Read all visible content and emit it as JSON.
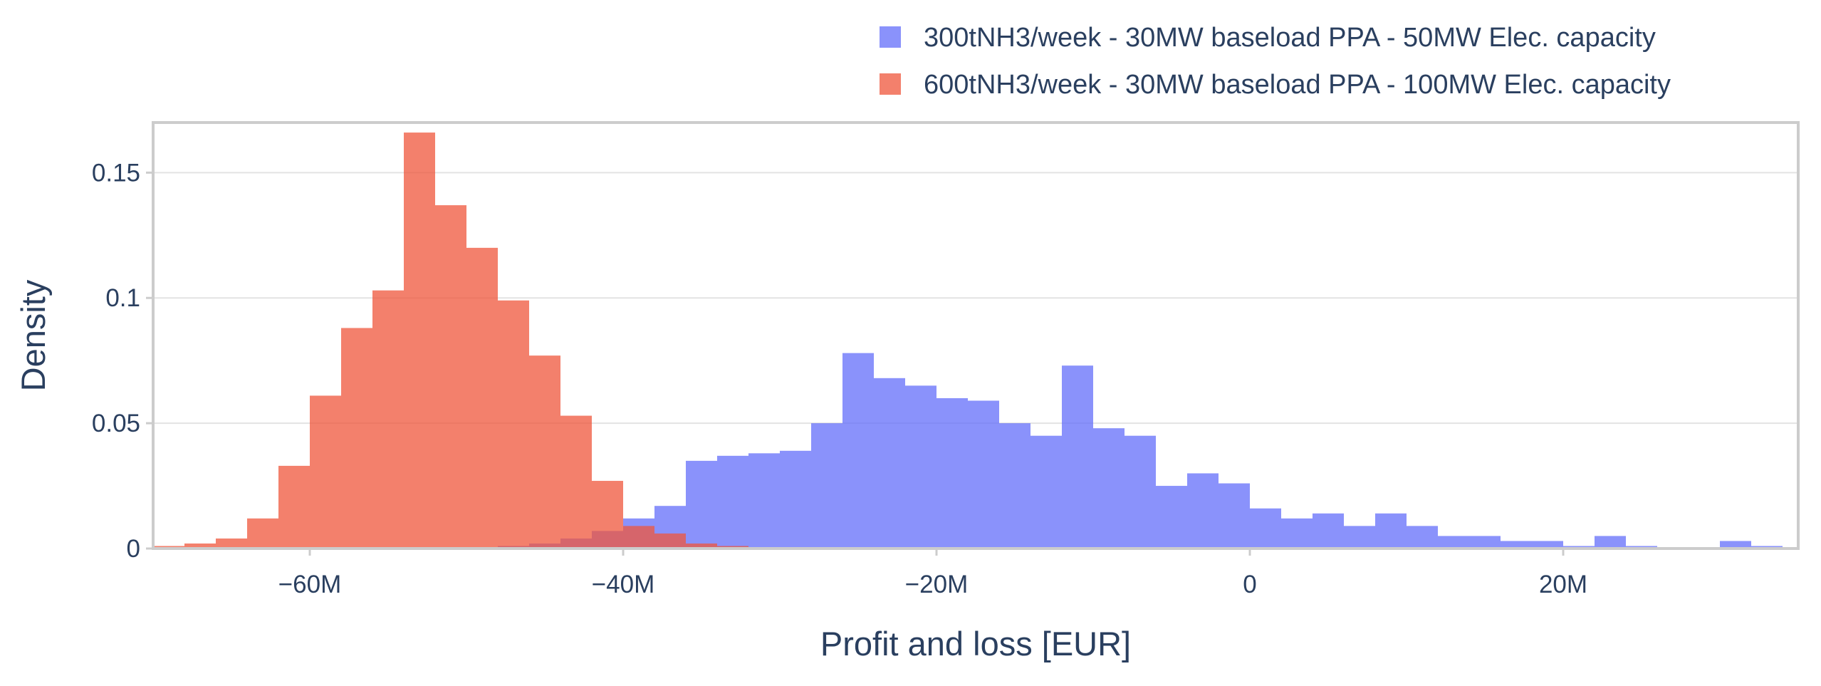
{
  "chart_data": {
    "type": "histogram",
    "xlabel": "Profit and loss [EUR]",
    "ylabel": "Density",
    "xlim": [
      -70,
      35
    ],
    "ylim": [
      0,
      0.17
    ],
    "bin_width": 2,
    "grid": true,
    "legend_position": "top-right",
    "x_ticks": [
      {
        "value": -60,
        "label": "−60M"
      },
      {
        "value": -40,
        "label": "−40M"
      },
      {
        "value": -20,
        "label": "−20M"
      },
      {
        "value": 0,
        "label": "0"
      },
      {
        "value": 20,
        "label": "20M"
      }
    ],
    "y_ticks": [
      {
        "value": 0,
        "label": "0"
      },
      {
        "value": 0.05,
        "label": "0.05"
      },
      {
        "value": 0.1,
        "label": "0.1"
      },
      {
        "value": 0.15,
        "label": "0.15"
      }
    ],
    "series": [
      {
        "name": "300tNH3/week - 30MW baseload PPA - 50MW Elec. capacity",
        "color": "#636efa",
        "opacity": 0.75,
        "x": [
          -48,
          -46,
          -44,
          -42,
          -40,
          -38,
          -36,
          -34,
          -32,
          -30,
          -28,
          -26,
          -24,
          -22,
          -20,
          -18,
          -16,
          -14,
          -12,
          -10,
          -8,
          -6,
          -4,
          -2,
          0,
          2,
          4,
          6,
          8,
          10,
          12,
          14,
          16,
          18,
          20,
          22,
          24,
          26,
          28,
          30,
          32,
          34
        ],
        "values": [
          0.001,
          0.002,
          0.004,
          0.007,
          0.012,
          0.017,
          0.035,
          0.037,
          0.038,
          0.039,
          0.05,
          0.078,
          0.068,
          0.065,
          0.06,
          0.059,
          0.05,
          0.045,
          0.073,
          0.048,
          0.045,
          0.025,
          0.03,
          0.026,
          0.016,
          0.012,
          0.014,
          0.009,
          0.014,
          0.009,
          0.005,
          0.005,
          0.003,
          0.003,
          0.001,
          0.005,
          0.001,
          0.0005,
          0.0005,
          0.003,
          0.001,
          0.0005
        ]
      },
      {
        "name": "600tNH3/week - 30MW baseload PPA - 100MW Elec. capacity",
        "color": "#ef553b",
        "opacity": 0.75,
        "x": [
          -70,
          -68,
          -66,
          -64,
          -62,
          -60,
          -58,
          -56,
          -54,
          -52,
          -50,
          -48,
          -46,
          -44,
          -42,
          -40,
          -38,
          -36,
          -34,
          -32
        ],
        "values": [
          0.001,
          0.002,
          0.004,
          0.012,
          0.033,
          0.061,
          0.088,
          0.103,
          0.166,
          0.137,
          0.12,
          0.099,
          0.077,
          0.053,
          0.027,
          0.009,
          0.006,
          0.002,
          0.001,
          0.0005
        ]
      }
    ]
  }
}
